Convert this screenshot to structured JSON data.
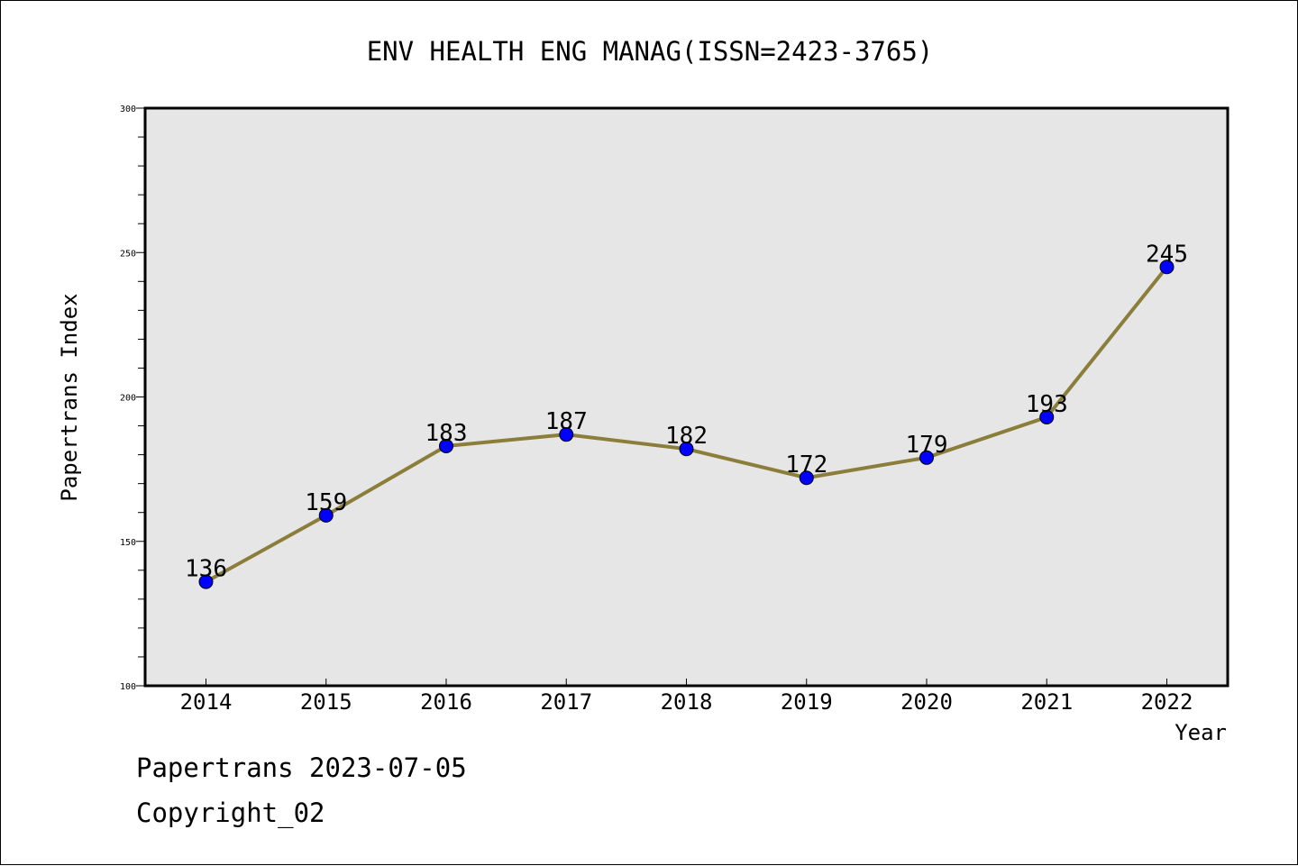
{
  "chart_data": {
    "type": "line",
    "title": "ENV HEALTH ENG MANAG(ISSN=2423-3765)",
    "xlabel": "Year",
    "ylabel": "Papertrans Index",
    "categories": [
      "2014",
      "2015",
      "2016",
      "2017",
      "2018",
      "2019",
      "2020",
      "2021",
      "2022"
    ],
    "series": [
      {
        "values": [
          136,
          159,
          183,
          187,
          182,
          172,
          179,
          193,
          245
        ]
      }
    ],
    "data_labels": [
      "136",
      "159",
      "183",
      "187",
      "182",
      "172",
      "179",
      "193",
      "245"
    ],
    "ylim": [
      100,
      300
    ],
    "yticks": [
      100,
      150,
      200,
      250,
      300
    ],
    "ytick_labels": [
      "100",
      "150",
      "200",
      "250",
      "300"
    ],
    "grid": false,
    "colors": {
      "line": "#8b7d3a",
      "marker": "#0000ff",
      "marker_edge": "#000000",
      "plot_background": "#e6e6e6"
    }
  },
  "footer": {
    "date_text": "Papertrans 2023-07-05",
    "copyright_text": "Copyright_02"
  }
}
